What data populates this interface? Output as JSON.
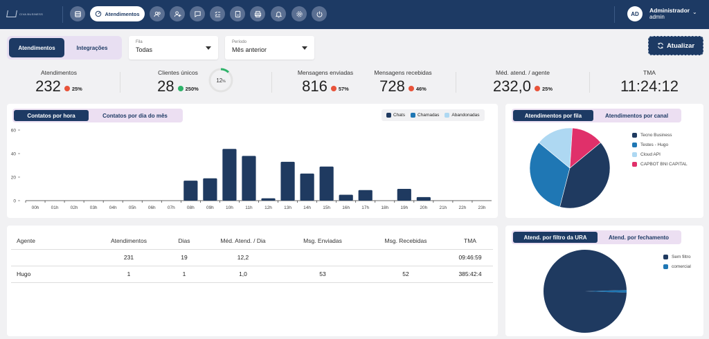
{
  "topbar": {
    "logo_text": "CIVA BUSINESS",
    "active_nav_label": "Atendimentos",
    "nav_icons": [
      "list-icon",
      "dashboard-icon",
      "users-icon",
      "add-user-icon",
      "chat-icon",
      "checklist-icon",
      "report-icon",
      "print-icon",
      "bell-icon",
      "gear-icon",
      "power-icon"
    ],
    "user": {
      "initials": "AD",
      "name": "Administrador",
      "role": "admin"
    }
  },
  "filters": {
    "tabs": [
      "Atendimentos",
      "Integrações"
    ],
    "active_tab": "Atendimentos",
    "fila": {
      "label": "Fila",
      "value": "Todas"
    },
    "periodo": {
      "label": "Período",
      "value": "Mês anterior"
    },
    "refresh_label": "Atualizar"
  },
  "kpis": [
    {
      "title": "Atendimentos",
      "value": "232",
      "delta": "25%",
      "trend": "down"
    },
    {
      "title": "Clientes únicos",
      "value": "28",
      "delta": "250%",
      "trend": "up"
    },
    {
      "title": "Mensagens enviadas",
      "value": "816",
      "delta": "57%",
      "trend": "down"
    },
    {
      "title": "Mensagens recebidas",
      "value": "728",
      "delta": "46%",
      "trend": "down"
    },
    {
      "title": "Méd. atend. / agente",
      "value": "232,0",
      "delta": "25%",
      "trend": "down"
    },
    {
      "title": "TMA",
      "value": "11:24:12",
      "delta": "",
      "trend": ""
    }
  ],
  "ring": {
    "label": "12",
    "suffix": "%",
    "value": 0.12
  },
  "bar_card": {
    "tabs": [
      "Contatos por hora",
      "Contatos por dia do mês"
    ],
    "active_tab": "Contatos por hora",
    "legend": [
      {
        "name": "Chats",
        "color": "#1f3a60"
      },
      {
        "name": "Chamadas",
        "color": "#1f77b4"
      },
      {
        "name": "Abandonadas",
        "color": "#aed8f2"
      }
    ]
  },
  "chart_data": [
    {
      "type": "bar",
      "categories": [
        "00h",
        "01h",
        "02h",
        "03h",
        "04h",
        "05h",
        "06h",
        "07h",
        "08h",
        "09h",
        "10h",
        "11h",
        "12h",
        "13h",
        "14h",
        "15h",
        "16h",
        "17h",
        "18h",
        "19h",
        "20h",
        "21h",
        "22h",
        "23h"
      ],
      "series": [
        {
          "name": "Chats",
          "values": [
            0,
            0,
            0,
            0,
            0,
            0,
            0,
            0,
            17,
            19,
            44,
            38,
            2,
            33,
            23,
            29,
            5,
            9,
            0,
            10,
            3,
            0,
            0,
            0
          ]
        },
        {
          "name": "Chamadas",
          "values": [
            0,
            0,
            0,
            0,
            0,
            0,
            0,
            0,
            0,
            0,
            0,
            0,
            0,
            0,
            0,
            0,
            0,
            0,
            0,
            0,
            0,
            0,
            0,
            0
          ]
        },
        {
          "name": "Abandonadas",
          "values": [
            0,
            0,
            0,
            0,
            0,
            0,
            0,
            0,
            0,
            0,
            0,
            0,
            0,
            0,
            0,
            0,
            0,
            0,
            0,
            0,
            0,
            0,
            0,
            0
          ]
        }
      ],
      "yticks": [
        0,
        20,
        40,
        60
      ],
      "ylim": [
        0,
        60
      ],
      "grid": false
    },
    {
      "type": "pie",
      "labels": [
        "Tecno Business",
        "Testes - Hugo",
        "Cloud API",
        "CAPBOT BNI CAPITAL"
      ],
      "values": [
        40,
        32,
        15,
        13
      ],
      "colors": [
        "#1f3a60",
        "#1f77b4",
        "#aed8f2",
        "#e0306a"
      ]
    },
    {
      "type": "pie",
      "labels": [
        "Sem filtro",
        "comercial"
      ],
      "values": [
        99,
        1
      ],
      "colors": [
        "#1f3a60",
        "#1f77b4"
      ]
    }
  ],
  "pie1_card": {
    "tabs": [
      "Atendimentos por fila",
      "Atendimentos por canal"
    ],
    "active_tab": "Atendimentos por fila"
  },
  "pie2_card": {
    "tabs": [
      "Atend. por filtro da URA",
      "Atend. por fechamento"
    ],
    "active_tab": "Atend. por filtro da URA"
  },
  "table": {
    "headers": [
      "Agente",
      "Atendimentos",
      "Dias",
      "Méd. Atend. / Dia",
      "Msg. Enviadas",
      "Msg. Recebidas",
      "TMA"
    ],
    "rows": [
      [
        "",
        "231",
        "19",
        "12,2",
        "",
        "",
        "09:46:59"
      ],
      [
        "Hugo",
        "1",
        "1",
        "1,0",
        "53",
        "52",
        "385:42:4"
      ]
    ]
  }
}
